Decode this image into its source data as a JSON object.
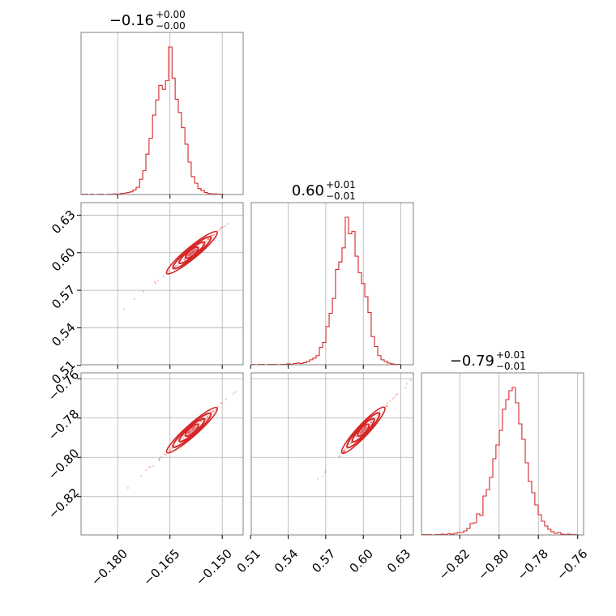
{
  "chart_data": {
    "type": "corner",
    "color": "#d62728",
    "params": [
      {
        "name": "p0",
        "title": {
          "median": "−0.16",
          "plus": "+0.00",
          "minus": "−0.00"
        },
        "xlim": [
          -0.1905,
          -0.144
        ],
        "ticks": [
          -0.18,
          -0.165,
          -0.15
        ],
        "tick_labels": [
          "−0.180",
          "−0.165",
          "−0.150"
        ],
        "median": -0.1587,
        "sigma": 0.0036,
        "hist_bins": [
          -0.1905,
          -0.1896,
          -0.1886,
          -0.1877,
          -0.1868,
          -0.1858,
          -0.1849,
          -0.184,
          -0.183,
          -0.1821,
          -0.1812,
          -0.1803,
          -0.1793,
          -0.1784,
          -0.1775,
          -0.1765,
          -0.1756,
          -0.1747,
          -0.1737,
          -0.1728,
          -0.1719,
          -0.171,
          -0.17,
          -0.1691,
          -0.1682,
          -0.1672,
          -0.1663,
          -0.1654,
          -0.1644,
          -0.1635,
          -0.1626,
          -0.1617,
          -0.1607,
          -0.1598,
          -0.1589,
          -0.1579,
          -0.157,
          -0.1561,
          -0.1551,
          -0.1542,
          -0.1533,
          -0.1524,
          -0.1514,
          -0.1505,
          -0.1496,
          -0.1486,
          -0.1477,
          -0.1468,
          -0.1458,
          -0.1449,
          -0.144
        ],
        "hist_counts": [
          1,
          1,
          0,
          1,
          0,
          1,
          1,
          0,
          1,
          1,
          2,
          1,
          3,
          4,
          6,
          8,
          14,
          22,
          46,
          72,
          122,
          170,
          240,
          286,
          330,
          318,
          344,
          446,
          352,
          288,
          248,
          202,
          152,
          98,
          54,
          34,
          18,
          12,
          6,
          3,
          2,
          2,
          1,
          1,
          0,
          0,
          0,
          0,
          0,
          0
        ]
      },
      {
        "name": "p1",
        "title": {
          "median": "0.60",
          "plus": "+0.01",
          "minus": "−0.01"
        },
        "xlim": [
          0.5105,
          0.64
        ],
        "ticks": [
          0.51,
          0.54,
          0.57,
          0.6,
          0.63
        ],
        "tick_labels": [
          "0.51",
          "0.54",
          "0.57",
          "0.60",
          "0.63"
        ],
        "median": 0.6,
        "sigma": 0.0085,
        "hist_bins": [
          0.5105,
          0.5131,
          0.5157,
          0.5183,
          0.5209,
          0.5235,
          0.526,
          0.5286,
          0.5312,
          0.5338,
          0.5364,
          0.539,
          0.5416,
          0.5442,
          0.5468,
          0.5494,
          0.5519,
          0.5545,
          0.5571,
          0.5597,
          0.5623,
          0.5649,
          0.5675,
          0.5701,
          0.5727,
          0.5753,
          0.5778,
          0.5804,
          0.583,
          0.5856,
          0.5882,
          0.5908,
          0.5934,
          0.596,
          0.5986,
          0.6012,
          0.6037,
          0.6063,
          0.6089,
          0.6115,
          0.6141,
          0.6167,
          0.6193,
          0.6219,
          0.6245,
          0.6271,
          0.6296,
          0.6322,
          0.6348,
          0.6374,
          0.64
        ],
        "hist_counts": [
          1,
          0,
          1,
          1,
          0,
          1,
          1,
          1,
          0,
          1,
          1,
          2,
          1,
          3,
          4,
          3,
          5,
          8,
          12,
          16,
          22,
          42,
          54,
          92,
          124,
          160,
          230,
          248,
          282,
          356,
          316,
          322,
          262,
          222,
          196,
          164,
          126,
          68,
          44,
          22,
          12,
          8,
          4,
          2,
          1,
          1,
          0,
          0,
          0,
          0
        ]
      },
      {
        "name": "p2",
        "title": {
          "median": "−0.79",
          "plus": "+0.01",
          "minus": "−0.01"
        },
        "xlim": [
          -0.8395,
          -0.757
        ],
        "ticks": [
          -0.82,
          -0.8,
          -0.78,
          -0.76
        ],
        "tick_labels": [
          "−0.82",
          "−0.80",
          "−0.78",
          "−0.76"
        ],
        "median": -0.7862,
        "sigma": 0.0058,
        "hist_bins": [
          -0.8395,
          -0.8378,
          -0.8362,
          -0.8345,
          -0.8329,
          -0.8312,
          -0.8296,
          -0.8279,
          -0.8263,
          -0.8246,
          -0.823,
          -0.8213,
          -0.8197,
          -0.818,
          -0.8164,
          -0.8148,
          -0.8131,
          -0.8115,
          -0.8098,
          -0.8082,
          -0.8065,
          -0.8049,
          -0.8032,
          -0.8016,
          -0.7999,
          -0.7983,
          -0.7966,
          -0.795,
          -0.7933,
          -0.7917,
          -0.79,
          -0.7884,
          -0.7867,
          -0.7851,
          -0.7834,
          -0.7818,
          -0.7801,
          -0.7785,
          -0.7768,
          -0.7752,
          -0.7736,
          -0.7719,
          -0.7703,
          -0.7686,
          -0.767,
          -0.7653,
          -0.7637,
          -0.762,
          -0.7604,
          -0.7587,
          -0.757
        ],
        "hist_counts": [
          1,
          1,
          1,
          0,
          1,
          1,
          2,
          1,
          3,
          2,
          4,
          6,
          6,
          10,
          16,
          28,
          30,
          52,
          48,
          96,
          112,
          142,
          188,
          222,
          258,
          310,
          334,
          356,
          364,
          326,
          274,
          236,
          178,
          132,
          104,
          74,
          50,
          34,
          22,
          14,
          8,
          4,
          6,
          2,
          1,
          2,
          1,
          1,
          0,
          0
        ]
      }
    ],
    "pairs": [
      {
        "x": 0,
        "y": 1,
        "slope": 2.3
      },
      {
        "x": 0,
        "y": 2,
        "slope": 1.575
      },
      {
        "x": 1,
        "y": 2,
        "slope": 0.682
      }
    ]
  }
}
